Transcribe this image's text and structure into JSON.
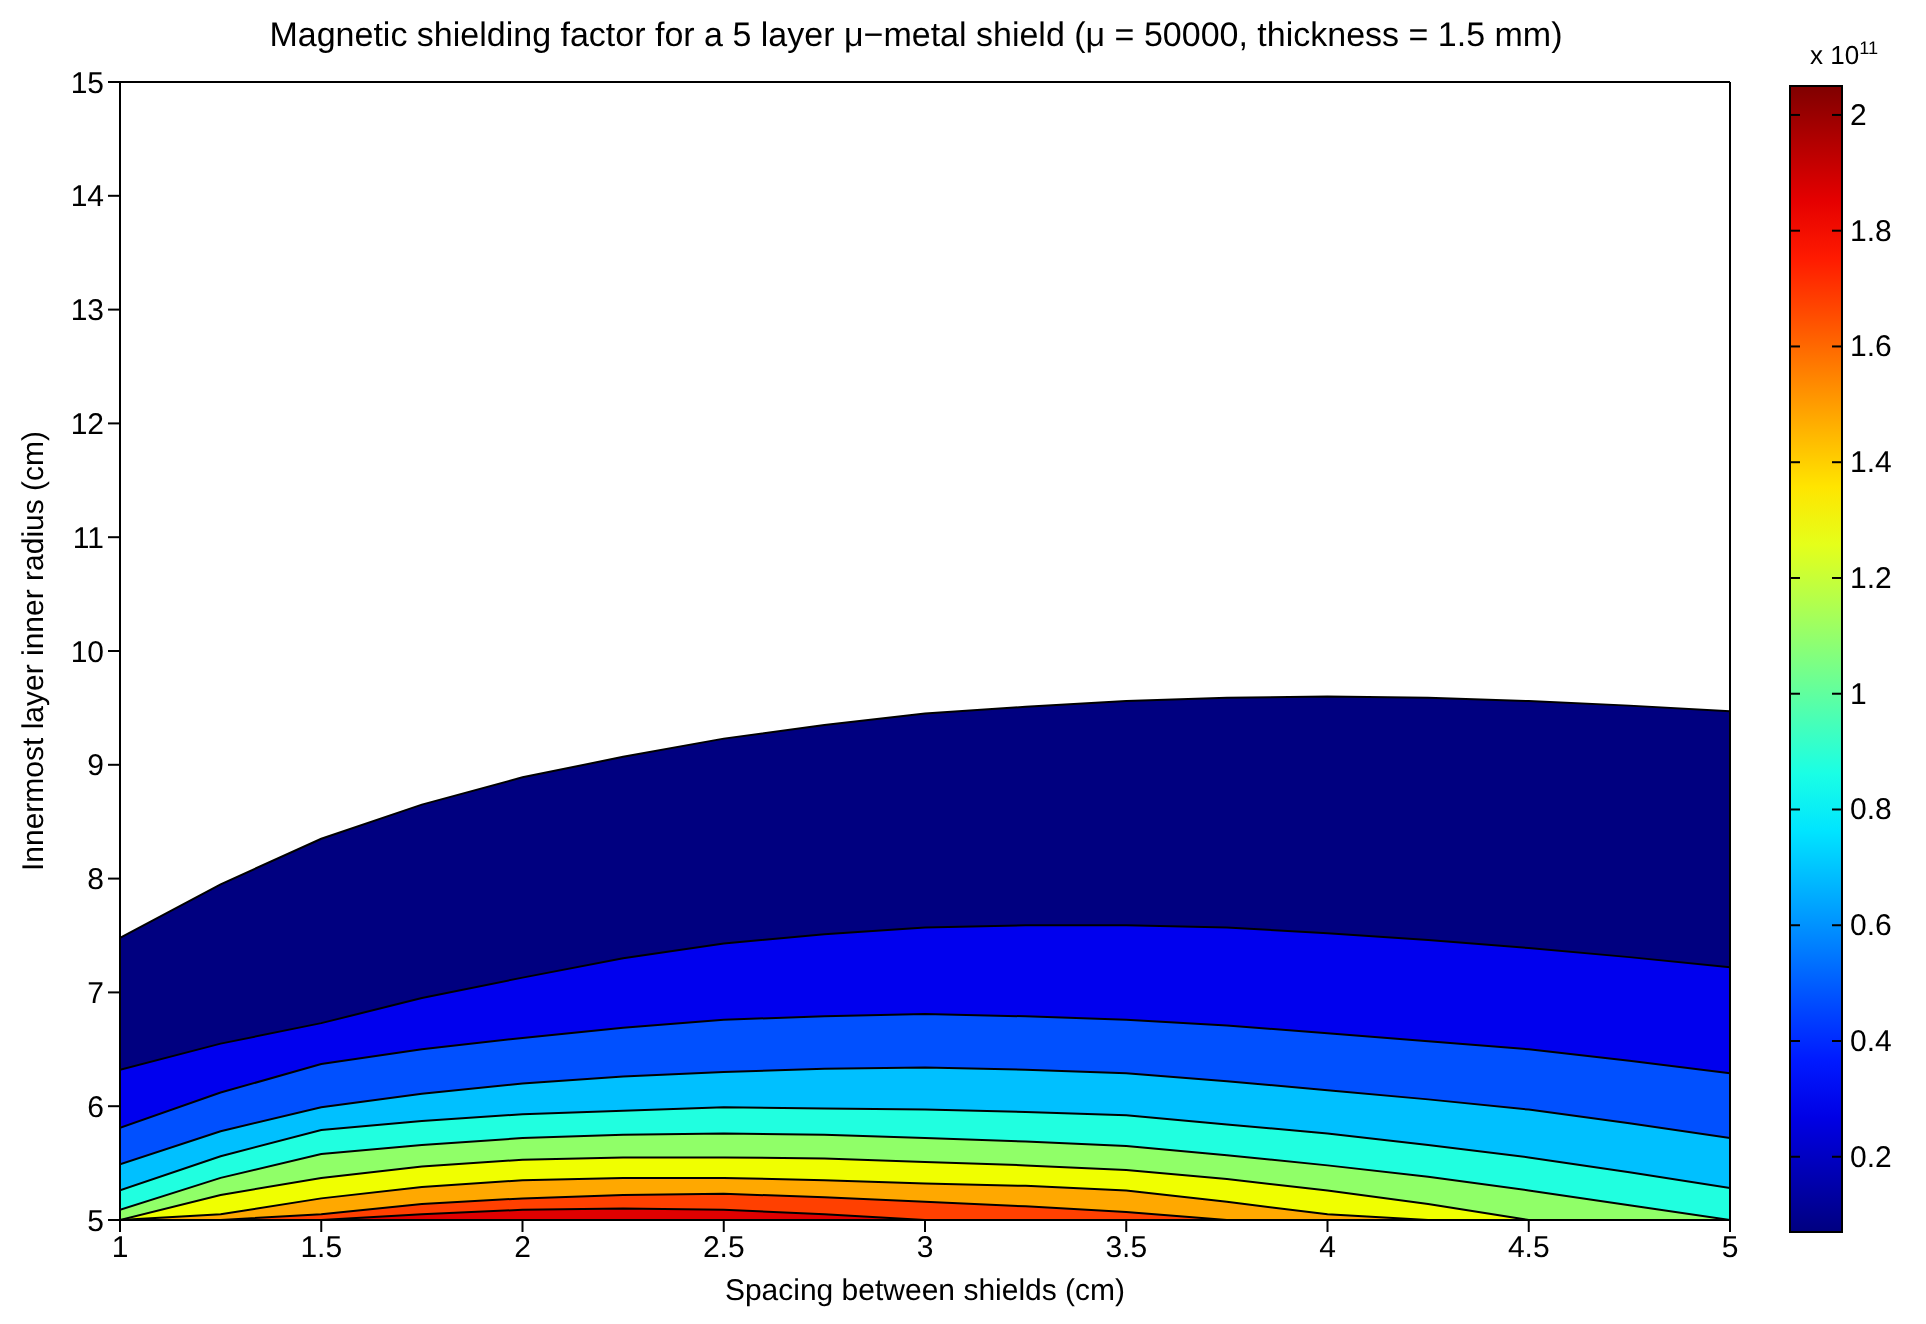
{
  "chart_data": {
    "type": "area",
    "title": "Magnetic shielding factor for a 5 layer μ−metal shield (μ = 50000, thickness = 1.5 mm)",
    "xlabel": "Spacing between shields (cm)",
    "ylabel": "Innermost layer inner radius (cm)",
    "clabel": "x 10$^{11}$",
    "x": [
      1,
      1.25,
      1.5,
      1.75,
      2,
      2.25,
      2.5,
      2.75,
      3,
      3.25,
      3.5,
      3.75,
      4,
      4.25,
      4.5,
      4.75,
      5
    ],
    "series": [
      {
        "color": "#000080",
        "values": [
          7.48,
          7.95,
          8.35,
          8.65,
          8.89,
          9.07,
          9.23,
          9.35,
          9.45,
          9.51,
          9.56,
          9.59,
          9.6,
          9.59,
          9.56,
          9.52,
          9.47
        ]
      },
      {
        "color": "#0000ee",
        "values": [
          6.32,
          6.55,
          6.73,
          6.95,
          7.13,
          7.3,
          7.43,
          7.51,
          7.57,
          7.59,
          7.59,
          7.57,
          7.52,
          7.46,
          7.39,
          7.31,
          7.22
        ]
      },
      {
        "color": "#0050ff",
        "values": [
          5.81,
          6.12,
          6.37,
          6.5,
          6.6,
          6.69,
          6.76,
          6.79,
          6.81,
          6.79,
          6.76,
          6.71,
          6.64,
          6.57,
          6.5,
          6.4,
          6.29
        ]
      },
      {
        "color": "#00c0ff",
        "values": [
          5.49,
          5.78,
          5.99,
          6.11,
          6.2,
          6.26,
          6.3,
          6.33,
          6.34,
          6.32,
          6.29,
          6.22,
          6.14,
          6.06,
          5.97,
          5.85,
          5.72
        ]
      },
      {
        "color": "#20ffe0",
        "values": [
          5.26,
          5.56,
          5.79,
          5.87,
          5.93,
          5.96,
          5.99,
          5.98,
          5.97,
          5.95,
          5.92,
          5.84,
          5.76,
          5.66,
          5.55,
          5.42,
          5.28
        ]
      },
      {
        "color": "#90ff68",
        "values": [
          5.09,
          5.37,
          5.58,
          5.66,
          5.72,
          5.75,
          5.76,
          5.75,
          5.72,
          5.69,
          5.65,
          5.57,
          5.48,
          5.38,
          5.26,
          5.13,
          5.0
        ]
      },
      {
        "color": "#f0ff00",
        "values": [
          5.0,
          5.22,
          5.37,
          5.47,
          5.53,
          5.55,
          5.55,
          5.54,
          5.51,
          5.48,
          5.44,
          5.36,
          5.26,
          5.14,
          5.0,
          5.0,
          5.0
        ]
      },
      {
        "color": "#ffa800",
        "values": [
          5.0,
          5.05,
          5.19,
          5.29,
          5.35,
          5.37,
          5.37,
          5.35,
          5.32,
          5.3,
          5.26,
          5.16,
          5.05,
          5.0,
          5.0,
          5.0,
          5.0
        ]
      },
      {
        "color": "#ff4000",
        "values": [
          5.0,
          5.0,
          5.05,
          5.14,
          5.19,
          5.22,
          5.23,
          5.2,
          5.16,
          5.12,
          5.07,
          5.0,
          5.0,
          5.0,
          5.0,
          5.0,
          5.0
        ]
      },
      {
        "color": "#e00000",
        "values": [
          5.0,
          5.0,
          5.0,
          5.05,
          5.09,
          5.1,
          5.09,
          5.05,
          5.0,
          5.0,
          5.0,
          5.0,
          5.0,
          5.0,
          5.0,
          5.0,
          5.0
        ]
      }
    ],
    "xlim": [
      1,
      5
    ],
    "xticks": [
      1,
      1.5,
      2,
      2.5,
      3,
      3.5,
      4,
      4.5,
      5
    ],
    "ylim": [
      5,
      15
    ],
    "yticks": [
      5,
      6,
      7,
      8,
      9,
      10,
      11,
      12,
      13,
      14,
      15
    ],
    "clim": [
      0.07,
      2.05
    ],
    "cticks": [
      0.2,
      0.4,
      0.6,
      0.8,
      1,
      1.2,
      1.4,
      1.6,
      1.8,
      2
    ],
    "grid": false,
    "legend": false
  }
}
